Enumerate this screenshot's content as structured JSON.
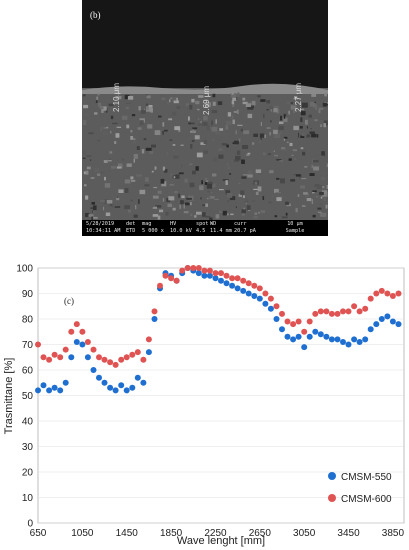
{
  "sem": {
    "panel_label": "(b)",
    "thickness_labels": [
      "2.10 μm",
      "2.69 μm",
      "2.27 μm"
    ],
    "info_bar": {
      "date": "5/28/2019",
      "time": "10:34:11 AM",
      "det_header": "det",
      "det_value": "ETD",
      "mag_header": "mag",
      "mag_value": "5 000 x",
      "hv_header": "HV",
      "hv_value": "10.0 kV",
      "spot_header": "spot",
      "spot_value": "4.5",
      "wd_header": "WD",
      "wd_value": "11.4 mm",
      "curr_header": "curr",
      "curr_value": "20.7 pA",
      "scale_label": "10 μm",
      "sample_label": "Sample"
    }
  },
  "chart_data": {
    "type": "scatter",
    "panel_label": "(c)",
    "xlabel": "Wave lenght [mm]",
    "ylabel": "Trasmittane [%]",
    "xlim": [
      650,
      3950
    ],
    "ylim": [
      0,
      100
    ],
    "xticks": [
      650,
      1050,
      1450,
      1850,
      2250,
      2650,
      3050,
      3450,
      3850
    ],
    "yticks": [
      0,
      10,
      20,
      30,
      40,
      50,
      60,
      70,
      80,
      90,
      100
    ],
    "legend_position": "bottom-right",
    "series": [
      {
        "name": "CMSM-550",
        "color": "#1f6fd1",
        "x": [
          650,
          700,
          750,
          800,
          850,
          900,
          950,
          1000,
          1050,
          1100,
          1150,
          1200,
          1250,
          1300,
          1350,
          1400,
          1450,
          1500,
          1550,
          1600,
          1650,
          1700,
          1750,
          1800,
          1850,
          1900,
          1950,
          2000,
          2050,
          2100,
          2150,
          2200,
          2250,
          2300,
          2350,
          2400,
          2450,
          2500,
          2550,
          2600,
          2650,
          2700,
          2750,
          2800,
          2850,
          2900,
          2950,
          3000,
          3050,
          3100,
          3150,
          3200,
          3250,
          3300,
          3350,
          3400,
          3450,
          3500,
          3550,
          3600,
          3650,
          3700,
          3750,
          3800,
          3850,
          3900
        ],
        "y": [
          52,
          54,
          52,
          53,
          52,
          55,
          65,
          71,
          70,
          65,
          60,
          57,
          55,
          53,
          52,
          54,
          52,
          53,
          57,
          55,
          67,
          80,
          92,
          98,
          97,
          95,
          98,
          100,
          99,
          98,
          97,
          97,
          96,
          95,
          94,
          93,
          92,
          91,
          90,
          89,
          88,
          86,
          84,
          80,
          76,
          73,
          72,
          73,
          69,
          73,
          75,
          74,
          73,
          72,
          72,
          71,
          70,
          72,
          71,
          72,
          76,
          78,
          80,
          81,
          79,
          78
        ]
      },
      {
        "name": "CMSM-600",
        "color": "#e05353",
        "x": [
          650,
          700,
          750,
          800,
          850,
          900,
          950,
          1000,
          1050,
          1100,
          1150,
          1200,
          1250,
          1300,
          1350,
          1400,
          1450,
          1500,
          1550,
          1600,
          1650,
          1700,
          1750,
          1800,
          1850,
          1900,
          1950,
          2000,
          2050,
          2100,
          2150,
          2200,
          2250,
          2300,
          2350,
          2400,
          2450,
          2500,
          2550,
          2600,
          2650,
          2700,
          2750,
          2800,
          2850,
          2900,
          2950,
          3000,
          3050,
          3100,
          3150,
          3200,
          3250,
          3300,
          3350,
          3400,
          3450,
          3500,
          3550,
          3600,
          3650,
          3700,
          3750,
          3800,
          3850,
          3900
        ],
        "y": [
          70,
          65,
          64,
          66,
          65,
          68,
          75,
          78,
          75,
          71,
          68,
          65,
          64,
          63,
          62,
          64,
          65,
          66,
          67,
          64,
          72,
          83,
          93,
          97,
          96,
          95,
          99,
          100,
          100,
          100,
          99,
          99,
          98,
          98,
          97,
          96,
          96,
          95,
          94,
          93,
          92,
          90,
          88,
          85,
          82,
          79,
          78,
          79,
          75,
          79,
          82,
          83,
          83,
          82,
          82,
          83,
          83,
          85,
          83,
          84,
          88,
          90,
          91,
          90,
          89,
          90
        ]
      }
    ]
  }
}
